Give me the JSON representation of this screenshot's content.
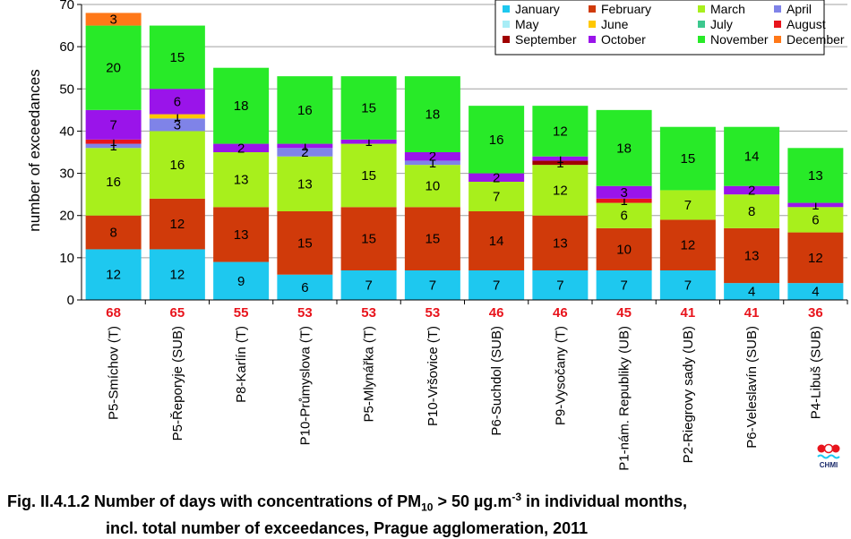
{
  "caption": {
    "line1_pre": "Fig. II.4.1.2  Number of days with concentrations of PM",
    "line1_sub": "10",
    "line1_mid": " > 50 µg.m",
    "line1_sup": "-3",
    "line1_post": " in individual months,",
    "line2": "incl. total number of exceedances, Prague agglomeration, 2011"
  },
  "logo": {
    "text": "CHMI"
  },
  "chart_data": {
    "type": "bar",
    "stacked": true,
    "ylabel": "number of exceedances",
    "ylim": [
      0,
      70
    ],
    "yticks": [
      0,
      10,
      20,
      30,
      40,
      50,
      60,
      70
    ],
    "legend_position": "top-right",
    "categories": [
      "P5-Smíchov (T)",
      "P5-Řeporyje (SUB)",
      "P8-Karlín (T)",
      "P10-Průmyslova (T)",
      "P5-Mlynářka (T)",
      "P10-Vršovice (T)",
      "P6-Suchdol (SUB)",
      "P9-Vysočany (T)",
      "P1-nám. Republiky (UB)",
      "P2-Riegrovy sady (UB)",
      "P6-Veleslavín (SUB)",
      "P4-Libuš (SUB)"
    ],
    "totals": [
      68,
      65,
      55,
      53,
      53,
      53,
      46,
      46,
      45,
      41,
      41,
      36
    ],
    "total_color": "#e8141c",
    "series": [
      {
        "name": "January",
        "color": "#1ec8ef",
        "values": [
          12,
          12,
          9,
          6,
          7,
          7,
          7,
          7,
          7,
          7,
          4,
          4
        ]
      },
      {
        "name": "February",
        "color": "#d03a0a",
        "values": [
          8,
          12,
          13,
          15,
          15,
          15,
          14,
          13,
          10,
          12,
          13,
          12
        ]
      },
      {
        "name": "March",
        "color": "#a8ef1c",
        "values": [
          16,
          16,
          13,
          13,
          15,
          10,
          7,
          12,
          6,
          7,
          8,
          6
        ]
      },
      {
        "name": "April",
        "color": "#7f83e8",
        "values": [
          1,
          3,
          0,
          2,
          0,
          1,
          0,
          0,
          0,
          0,
          0,
          0
        ]
      },
      {
        "name": "May",
        "color": "#a8edf6",
        "values": [
          0,
          0,
          0,
          0,
          0,
          0,
          0,
          0,
          0,
          0,
          0,
          0
        ]
      },
      {
        "name": "June",
        "color": "#ffc800",
        "values": [
          0,
          1,
          0,
          0,
          0,
          0,
          0,
          0,
          0,
          0,
          0,
          0
        ]
      },
      {
        "name": "July",
        "color": "#3cc88e",
        "values": [
          0,
          0,
          0,
          0,
          0,
          0,
          0,
          0,
          0,
          0,
          0,
          0
        ]
      },
      {
        "name": "August",
        "color": "#e8141c",
        "values": [
          1,
          0,
          0,
          0,
          0,
          0,
          0,
          0,
          1,
          0,
          0,
          0
        ]
      },
      {
        "name": "September",
        "color": "#a00000",
        "values": [
          0,
          0,
          0,
          0,
          0,
          0,
          0,
          1,
          0,
          0,
          0,
          0
        ]
      },
      {
        "name": "October",
        "color": "#9a14ea",
        "values": [
          7,
          6,
          2,
          1,
          1,
          2,
          2,
          1,
          3,
          0,
          2,
          1
        ]
      },
      {
        "name": "November",
        "color": "#28ea28",
        "values": [
          20,
          15,
          18,
          16,
          15,
          18,
          16,
          12,
          18,
          15,
          14,
          13
        ]
      },
      {
        "name": "December",
        "color": "#ff7818",
        "values": [
          3,
          0,
          0,
          0,
          0,
          0,
          0,
          0,
          0,
          0,
          0,
          0
        ]
      }
    ]
  }
}
